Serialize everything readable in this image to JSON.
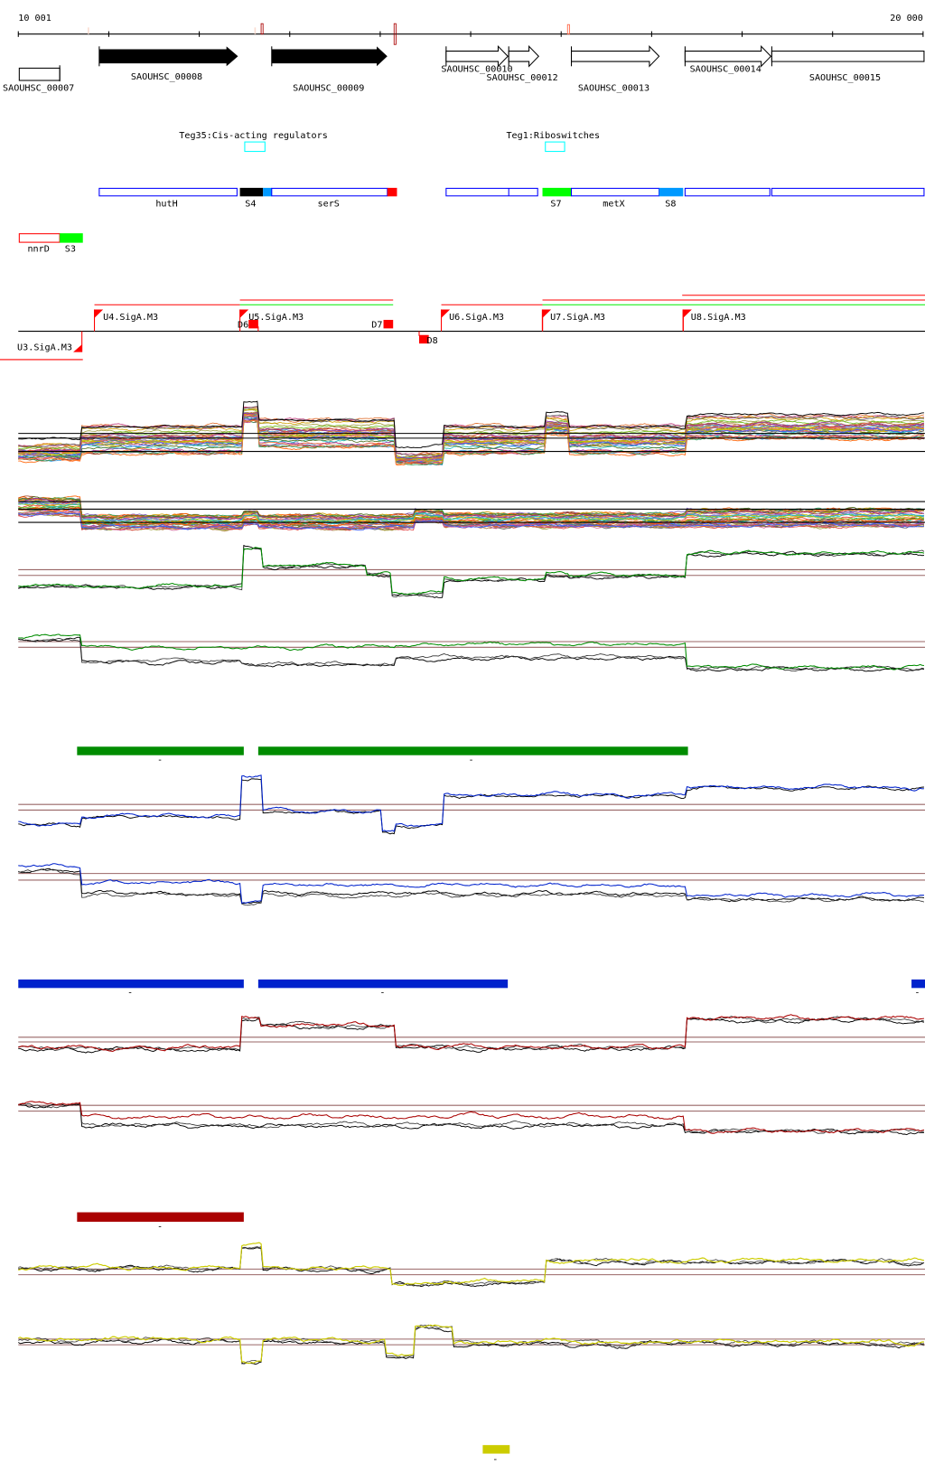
{
  "axis": {
    "start_label": "10 001",
    "end_label": "20 000"
  },
  "genes": [
    {
      "name": "SAOUHSC_00007"
    },
    {
      "name": "SAOUHSC_00008"
    },
    {
      "name": "SAOUHSC_00009"
    },
    {
      "name": "SAOUHSC_00010"
    },
    {
      "name": "SAOUHSC_00012"
    },
    {
      "name": "SAOUHSC_00013"
    },
    {
      "name": "SAOUHSC_00014"
    },
    {
      "name": "SAOUHSC_00015"
    }
  ],
  "regulators": [
    {
      "name": "Teg35:Cis-acting regulators"
    },
    {
      "name": "Teg1:Riboswitches"
    }
  ],
  "features": {
    "hutH": "hutH",
    "S4": "S4",
    "serS": "serS",
    "S7": "S7",
    "metX": "metX",
    "S8": "S8",
    "nnrD": "nnrD",
    "S3": "S3"
  },
  "promoters": {
    "U3": "U3.SigA.M3",
    "U4": "U4.SigA.M3",
    "U5": "U5.SigA.M3",
    "U6": "U6.SigA.M3",
    "U7": "U7.SigA.M3",
    "U8": "U8.SigA.M3",
    "D6": "D6",
    "D7": "D7",
    "D8": "D8"
  },
  "strand_marks": {
    "minus": "-"
  },
  "colors": {
    "gene": "#000000",
    "feature_outline": "#0000ff",
    "regulator_box": "#00ffff",
    "promoter": "#ff0000",
    "promoter_green": "#00ee00",
    "track_green": "#008c00",
    "track_blue": "#0022cc",
    "track_red": "#aa0000",
    "track_yellow": "#cccc00",
    "ref_line": "#996666"
  }
}
